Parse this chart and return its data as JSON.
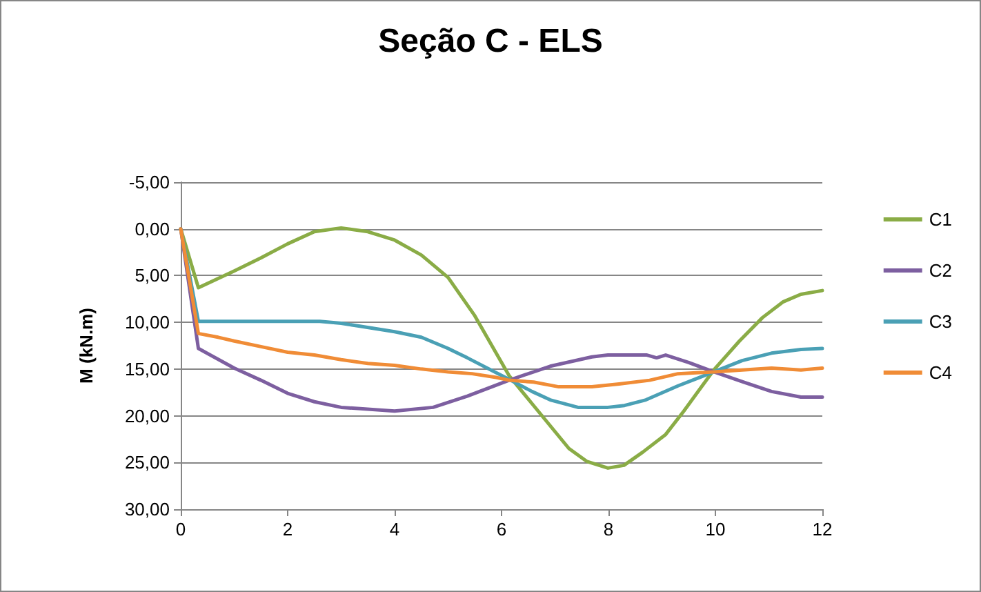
{
  "chart_data": {
    "type": "line",
    "title": "Seção C - ELS",
    "ylabel": "M (kN.m)",
    "xlim": [
      0,
      12
    ],
    "xticks": [
      0,
      2,
      4,
      6,
      8,
      10,
      12
    ],
    "ylim": [
      30,
      -5
    ],
    "yticks": [
      {
        "value": -5,
        "label": "-5,00"
      },
      {
        "value": 0,
        "label": "0,00"
      },
      {
        "value": 5,
        "label": "5,00"
      },
      {
        "value": 10,
        "label": "10,00"
      },
      {
        "value": 15,
        "label": "15,00"
      },
      {
        "value": 20,
        "label": "20,00"
      },
      {
        "value": 25,
        "label": "25,00"
      },
      {
        "value": 30,
        "label": "30,00"
      }
    ],
    "grid": "y",
    "legend": "right",
    "line_style": "solid",
    "series": [
      {
        "name": "C1",
        "color": "#8aac46",
        "x": [
          0,
          0.33,
          1,
          1.5,
          2,
          2.5,
          3,
          3.5,
          4,
          4.5,
          5,
          5.5,
          6.14,
          6.57,
          7.26,
          7.6,
          7.99,
          8.29,
          8.64,
          9.07,
          9.41,
          9.97,
          10.45,
          10.88,
          11.27,
          11.6,
          12
        ],
        "values": [
          0,
          6.3,
          4.5,
          3.1,
          1.6,
          0.3,
          -0.1,
          0.3,
          1.2,
          2.8,
          5.2,
          9.3,
          15.7,
          18.7,
          23.5,
          24.9,
          25.6,
          25.3,
          23.9,
          22,
          19.5,
          15.1,
          12,
          9.5,
          7.8,
          7,
          6.6
        ]
      },
      {
        "name": "C2",
        "color": "#7d5fa0",
        "x": [
          0,
          0.33,
          1,
          1.5,
          2,
          2.5,
          3,
          4,
          4.72,
          5.36,
          6.14,
          6.91,
          7.69,
          7.99,
          8.72,
          8.9,
          9.07,
          9.5,
          9.97,
          10.53,
          11.05,
          11.6,
          12
        ],
        "values": [
          0,
          12.8,
          14.9,
          16.2,
          17.6,
          18.5,
          19.1,
          19.5,
          19.1,
          17.9,
          16.2,
          14.7,
          13.7,
          13.5,
          13.5,
          13.8,
          13.5,
          14.3,
          15.3,
          16.4,
          17.4,
          18,
          18
        ]
      },
      {
        "name": "C3",
        "color": "#4aa0b5",
        "x": [
          0,
          0.33,
          1,
          2,
          2.6,
          3,
          3.33,
          4,
          4.5,
          5,
          5.36,
          6.14,
          6.57,
          6.91,
          7.43,
          7.99,
          8.3,
          8.7,
          9.3,
          9.97,
          10.5,
          11.05,
          11.6,
          12
        ],
        "values": [
          0,
          9.9,
          9.9,
          9.9,
          9.9,
          10.1,
          10.4,
          11,
          11.6,
          12.8,
          13.8,
          16.1,
          17.4,
          18.3,
          19.1,
          19.1,
          18.9,
          18.3,
          16.8,
          15.3,
          14.1,
          13.3,
          12.9,
          12.8
        ]
      },
      {
        "name": "C4",
        "color": "#f08c36",
        "x": [
          0,
          0.33,
          0.7,
          1,
          1.5,
          2,
          2.5,
          3,
          3.5,
          4,
          4.5,
          5,
          5.45,
          5.9,
          6.14,
          6.6,
          7.07,
          7.69,
          8.2,
          8.77,
          9.3,
          9.97,
          10.5,
          11.05,
          11.6,
          12
        ],
        "values": [
          0,
          11.2,
          11.6,
          12,
          12.6,
          13.2,
          13.5,
          14,
          14.4,
          14.6,
          15,
          15.3,
          15.5,
          15.9,
          16.2,
          16.4,
          16.9,
          16.9,
          16.6,
          16.2,
          15.5,
          15.3,
          15.1,
          14.9,
          15.1,
          14.9
        ]
      }
    ]
  }
}
